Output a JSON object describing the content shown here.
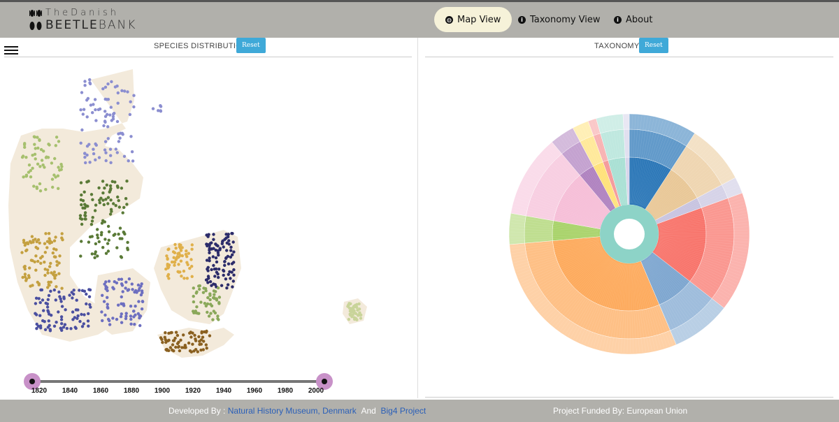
{
  "header": {
    "logo_line1": "TheDanish",
    "logo_line2a": "BEETLE",
    "logo_line2b": "BANK",
    "nav": [
      {
        "label": "Map View",
        "icon": "globe-icon",
        "active": true
      },
      {
        "label": "Taxonomy View",
        "icon": "info-icon",
        "active": false
      },
      {
        "label": "About",
        "icon": "info-icon",
        "active": false
      }
    ]
  },
  "left_panel": {
    "title": "SPECIES DISTRIBUTION",
    "reset_label": "Reset",
    "timeline": {
      "range": [
        1820,
        2000
      ],
      "ticks": [
        "1820",
        "1840",
        "1860",
        "1880",
        "1900",
        "1920",
        "1940",
        "1960",
        "1980",
        "2000"
      ]
    }
  },
  "right_panel": {
    "title": "TAXONOMY",
    "reset_label": "Reset"
  },
  "colors": {
    "header_bg": "#b1b0ab",
    "reset_bg": "#3fa9d8",
    "land": "#f3eadb",
    "handle": "#c891c8"
  },
  "footer": {
    "developed_by": "Developed By :",
    "org1": "Natural History Museum, Denmark",
    "and": "And",
    "org2": "Big4 Project",
    "funded": "Project Funded By: European Union"
  }
}
